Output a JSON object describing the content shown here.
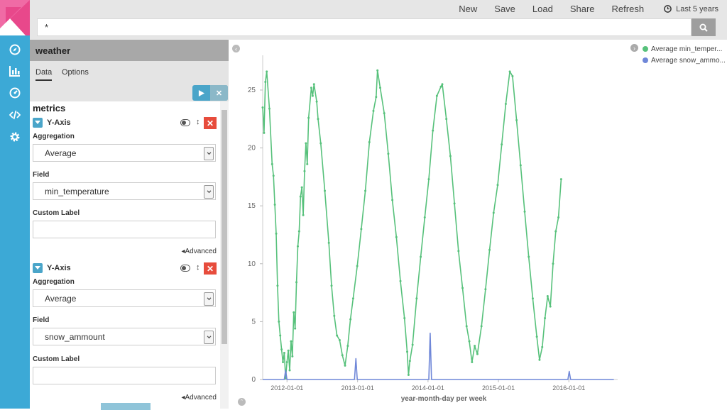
{
  "app": {
    "logo_icon": "kibana-logo"
  },
  "nav": [
    {
      "icon": "discover-compass-icon"
    },
    {
      "icon": "visualize-chart-icon"
    },
    {
      "icon": "dashboard-gauge-icon"
    },
    {
      "icon": "dev-tools-code-icon"
    },
    {
      "icon": "settings-gear-icon"
    }
  ],
  "topbar": {
    "menu": [
      "New",
      "Save",
      "Load",
      "Share",
      "Refresh"
    ],
    "time_range": "Last 5 years"
  },
  "search": {
    "value": "*"
  },
  "sidebar": {
    "index_title": "weather",
    "tabs": [
      "Data",
      "Options"
    ],
    "section_title": "metrics",
    "metrics": [
      {
        "axis": "Y-Axis",
        "aggregation_label": "Aggregation",
        "aggregation": "Average",
        "field_label": "Field",
        "field": "min_temperature",
        "custom_label": "Custom Label",
        "custom_value": "",
        "advanced": "Advanced"
      },
      {
        "axis": "Y-Axis",
        "aggregation_label": "Aggregation",
        "aggregation": "Average",
        "field_label": "Field",
        "field": "snow_ammount",
        "custom_label": "Custom Label",
        "custom_value": "",
        "advanced": "Advanced"
      }
    ]
  },
  "legend": [
    {
      "label": "Average min_temper...",
      "color": "#57c17b"
    },
    {
      "label": "Average snow_ammo...",
      "color": "#6f87d8"
    }
  ],
  "chart_data": {
    "type": "line",
    "xlabel": "year-month-day per week",
    "ylabel": "",
    "x_ticks": [
      "2012-01-01",
      "2013-01-01",
      "2014-01-01",
      "2015-01-01",
      "2016-01-01"
    ],
    "y_ticks": [
      0,
      5,
      10,
      15,
      20,
      25
    ],
    "ylim": [
      0,
      28
    ],
    "xlim": [
      "2011-08-28",
      "2016-09-10"
    ],
    "grid": false,
    "legend_position": "top-right",
    "series": [
      {
        "name": "Average min_temper...",
        "color": "#57c17b",
        "points": [
          [
            "2011-08-28",
            23.5
          ],
          [
            "2011-09-04",
            21.3
          ],
          [
            "2011-09-11",
            25.7
          ],
          [
            "2011-09-18",
            26.6
          ],
          [
            "2011-10-02",
            23.4
          ],
          [
            "2011-10-16",
            18.6
          ],
          [
            "2011-10-23",
            17.6
          ],
          [
            "2011-10-30",
            15.1
          ],
          [
            "2011-11-06",
            12.6
          ],
          [
            "2011-11-13",
            8.1
          ],
          [
            "2011-11-20",
            5.0
          ],
          [
            "2011-11-27",
            3.8
          ],
          [
            "2011-12-04",
            2.6
          ],
          [
            "2011-12-11",
            1.5
          ],
          [
            "2011-12-18",
            2.3
          ],
          [
            "2011-12-25",
            0.1
          ],
          [
            "2012-01-01",
            1.5
          ],
          [
            "2012-01-08",
            2.5
          ],
          [
            "2012-01-15",
            0.8
          ],
          [
            "2012-01-22",
            3.3
          ],
          [
            "2012-01-29",
            2.0
          ],
          [
            "2012-02-05",
            5.8
          ],
          [
            "2012-02-12",
            4.4
          ],
          [
            "2012-02-19",
            8.4
          ],
          [
            "2012-02-26",
            11.5
          ],
          [
            "2012-03-04",
            12.8
          ],
          [
            "2012-03-11",
            15.8
          ],
          [
            "2012-03-18",
            16.6
          ],
          [
            "2012-03-25",
            14.2
          ],
          [
            "2012-04-01",
            18.0
          ],
          [
            "2012-04-08",
            20.4
          ],
          [
            "2012-04-15",
            18.6
          ],
          [
            "2012-04-22",
            22.6
          ],
          [
            "2012-05-06",
            25.2
          ],
          [
            "2012-05-13",
            24.5
          ],
          [
            "2012-05-20",
            25.5
          ],
          [
            "2012-06-03",
            24.0
          ],
          [
            "2012-06-10",
            22.5
          ],
          [
            "2012-06-24",
            20.4
          ],
          [
            "2012-07-15",
            16.3
          ],
          [
            "2012-08-05",
            11.8
          ],
          [
            "2012-08-19",
            8.1
          ],
          [
            "2012-09-02",
            5.5
          ],
          [
            "2012-09-16",
            3.8
          ],
          [
            "2012-09-30",
            3.4
          ],
          [
            "2012-10-14",
            2.1
          ],
          [
            "2012-10-28",
            1.2
          ],
          [
            "2012-11-11",
            2.9
          ],
          [
            "2012-11-25",
            5.2
          ],
          [
            "2012-12-09",
            7.0
          ],
          [
            "2012-12-30",
            9.8
          ],
          [
            "2013-01-20",
            13.0
          ],
          [
            "2013-02-10",
            16.3
          ],
          [
            "2013-03-03",
            20.5
          ],
          [
            "2013-03-24",
            23.2
          ],
          [
            "2013-04-07",
            24.4
          ],
          [
            "2013-04-14",
            26.7
          ],
          [
            "2013-04-28",
            25.2
          ],
          [
            "2013-05-19",
            23.0
          ],
          [
            "2013-06-09",
            19.5
          ],
          [
            "2013-06-30",
            15.5
          ],
          [
            "2013-07-21",
            12.3
          ],
          [
            "2013-08-11",
            8.5
          ],
          [
            "2013-09-01",
            5.3
          ],
          [
            "2013-09-15",
            2.4
          ],
          [
            "2013-09-22",
            0.4
          ],
          [
            "2013-09-29",
            1.6
          ],
          [
            "2013-10-13",
            3.0
          ],
          [
            "2013-11-03",
            7.0
          ],
          [
            "2013-11-24",
            10.6
          ],
          [
            "2013-12-15",
            14.0
          ],
          [
            "2014-01-05",
            17.3
          ],
          [
            "2014-01-26",
            21.5
          ],
          [
            "2014-02-16",
            24.5
          ],
          [
            "2014-03-09",
            25.3
          ],
          [
            "2014-03-16",
            25.5
          ],
          [
            "2014-04-06",
            22.5
          ],
          [
            "2014-04-27",
            19.3
          ],
          [
            "2014-05-18",
            15.2
          ],
          [
            "2014-06-08",
            11.1
          ],
          [
            "2014-06-29",
            7.9
          ],
          [
            "2014-07-20",
            4.6
          ],
          [
            "2014-08-03",
            3.3
          ],
          [
            "2014-08-17",
            1.5
          ],
          [
            "2014-08-31",
            2.9
          ],
          [
            "2014-09-14",
            2.2
          ],
          [
            "2014-10-05",
            4.6
          ],
          [
            "2014-10-26",
            7.8
          ],
          [
            "2014-11-16",
            11.2
          ],
          [
            "2014-12-07",
            14.4
          ],
          [
            "2014-12-28",
            16.8
          ],
          [
            "2015-01-18",
            20.3
          ],
          [
            "2015-02-08",
            23.8
          ],
          [
            "2015-03-01",
            26.6
          ],
          [
            "2015-03-15",
            26.2
          ],
          [
            "2015-04-05",
            22.4
          ],
          [
            "2015-04-26",
            18.5
          ],
          [
            "2015-05-17",
            14.5
          ],
          [
            "2015-06-07",
            10.6
          ],
          [
            "2015-06-28",
            7.0
          ],
          [
            "2015-07-19",
            3.7
          ],
          [
            "2015-08-02",
            1.7
          ],
          [
            "2015-08-16",
            2.8
          ],
          [
            "2015-08-30",
            5.3
          ],
          [
            "2015-09-13",
            7.2
          ],
          [
            "2015-09-27",
            6.3
          ],
          [
            "2015-10-11",
            10.0
          ],
          [
            "2015-10-25",
            12.8
          ],
          [
            "2015-11-08",
            14.0
          ],
          [
            "2015-11-22",
            17.3
          ]
        ]
      },
      {
        "name": "Average snow_ammo...",
        "color": "#6f87d8",
        "points": [
          [
            "2011-08-28",
            0
          ],
          [
            "2011-12-18",
            0
          ],
          [
            "2011-12-25",
            0.8
          ],
          [
            "2012-01-01",
            0
          ],
          [
            "2012-12-16",
            0
          ],
          [
            "2012-12-23",
            1.8
          ],
          [
            "2012-12-30",
            0
          ],
          [
            "2014-01-05",
            0
          ],
          [
            "2014-01-12",
            4.0
          ],
          [
            "2014-01-19",
            0
          ],
          [
            "2015-12-27",
            0
          ],
          [
            "2016-01-03",
            0.7
          ],
          [
            "2016-01-10",
            0
          ],
          [
            "2016-08-21",
            0
          ]
        ]
      }
    ]
  }
}
